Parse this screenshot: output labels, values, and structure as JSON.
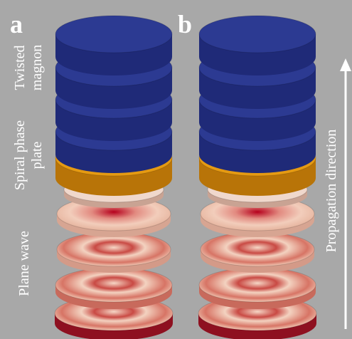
{
  "panel_labels": [
    "a",
    "b"
  ],
  "side_labels": [
    {
      "lines": [
        "Twisted",
        "magnon"
      ]
    },
    {
      "lines": [
        "Spiral phase",
        "plate"
      ]
    },
    {
      "lines": [
        "Plane wave"
      ]
    }
  ],
  "arrow_label": "Propagation direction"
}
